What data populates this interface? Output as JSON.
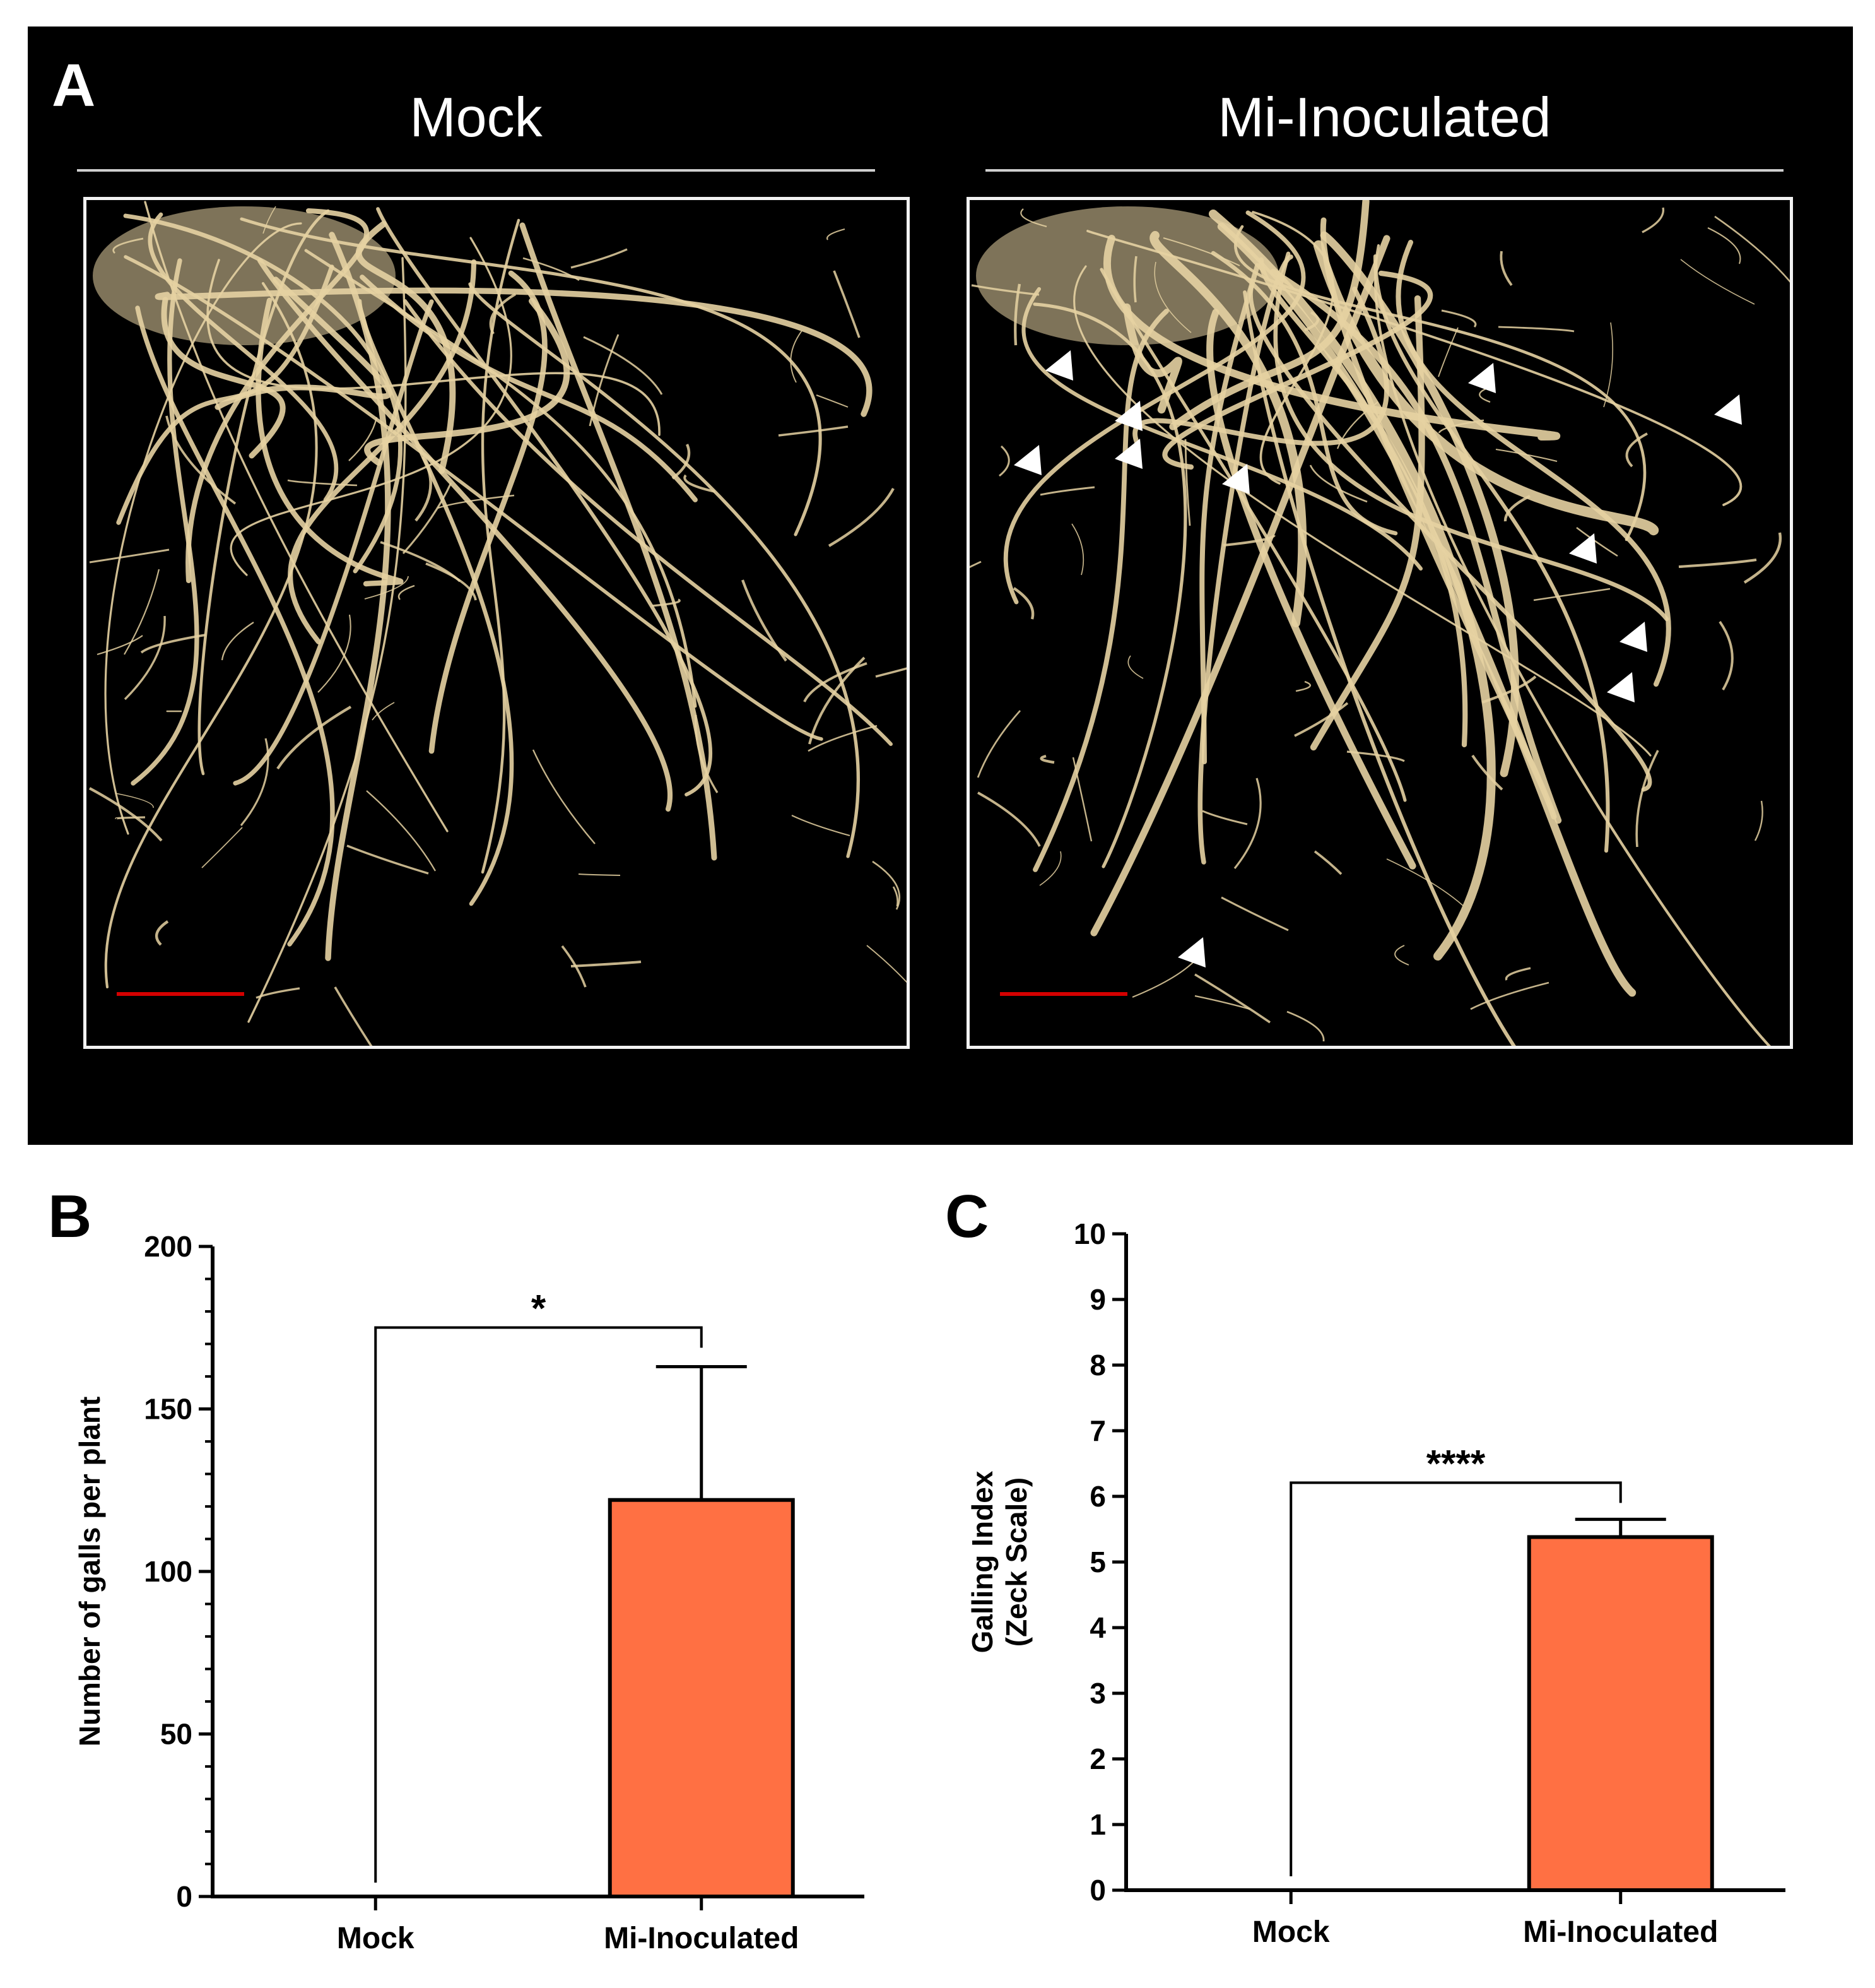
{
  "panel_a": {
    "letter": "A",
    "left_title": "Mock",
    "right_title": "Mi-Inoculated",
    "colors": {
      "background": "#000000",
      "root": "#e6d2a2",
      "scale_bar": "#d40000",
      "arrowhead": "#ffffff"
    },
    "right_arrowhead_count": 11
  },
  "panel_b": {
    "letter": "B"
  },
  "panel_c": {
    "letter": "C"
  },
  "chart_data": [
    {
      "type": "bar",
      "panel": "B",
      "categories": [
        "Mock",
        "Mi-Inoculated"
      ],
      "values": [
        0,
        122
      ],
      "error_upper": [
        0,
        41
      ],
      "ylabel": "Number of galls per plant",
      "ylim": [
        0,
        200
      ],
      "yticks": [
        0,
        50,
        100,
        150,
        200
      ],
      "significance": "*",
      "bar_colors": [
        "#ff7043",
        "#ff7043"
      ]
    },
    {
      "type": "bar",
      "panel": "C",
      "categories": [
        "Mock",
        "Mi-Inoculated"
      ],
      "values": [
        0,
        5.38
      ],
      "error_upper": [
        0,
        0.27
      ],
      "ylabel": "Galling Index",
      "ylabel2": "(Zeck Scale)",
      "ylim": [
        0,
        10
      ],
      "yticks": [
        0,
        1,
        2,
        3,
        4,
        5,
        6,
        7,
        8,
        9,
        10
      ],
      "significance": "****",
      "bar_colors": [
        "#ff7043",
        "#ff7043"
      ]
    }
  ]
}
